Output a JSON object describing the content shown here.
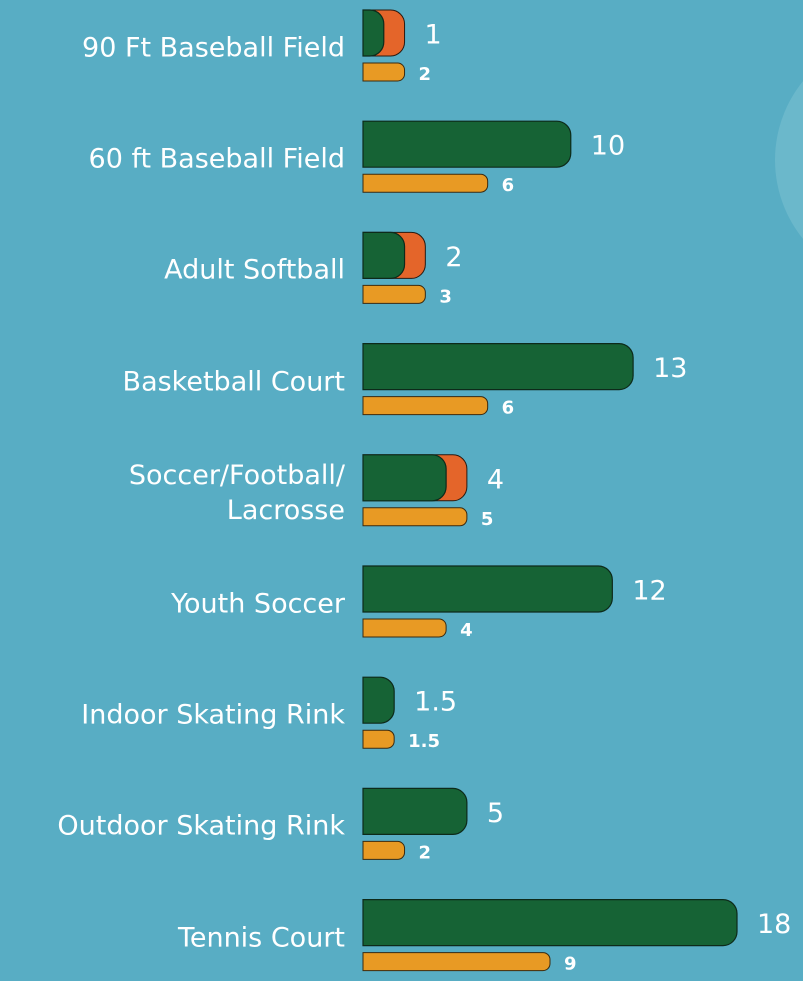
{
  "chart_data": {
    "type": "bar",
    "categories": [
      "90 Ft Baseball Field",
      "60 ft Baseball Field",
      "Adult Softball",
      "Basketball Court",
      "Soccer/Football/\nLacrosse",
      "Youth Soccer",
      "Indoor Skating Rink",
      "Outdoor Skating Rink",
      "Tennis Court"
    ],
    "series": [
      {
        "color": "#166335",
        "values": [
          1,
          10,
          2,
          13,
          4,
          12,
          1.5,
          5,
          18
        ]
      },
      {
        "color": "#e89a24",
        "overlap_color": "#e4652a",
        "values": [
          2,
          6,
          3,
          6,
          5,
          4,
          1.5,
          2,
          9
        ]
      }
    ]
  }
}
